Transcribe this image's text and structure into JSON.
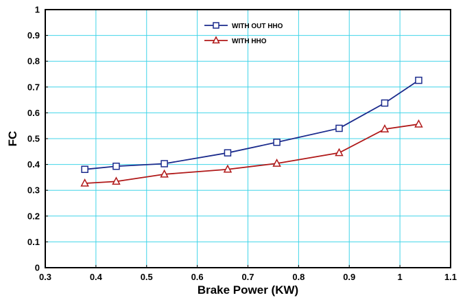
{
  "chart_data": {
    "type": "line",
    "title": "",
    "xlabel": "Brake Power (KW)",
    "ylabel": "FC",
    "xlim": [
      0.3,
      1.1
    ],
    "ylim": [
      0,
      1
    ],
    "xticks": [
      0.3,
      0.4,
      0.5,
      0.6,
      0.7,
      0.8,
      0.9,
      1,
      1.1
    ],
    "yticks": [
      0,
      0.1,
      0.2,
      0.3,
      0.4,
      0.5,
      0.6,
      0.7,
      0.8,
      0.9,
      1
    ],
    "xtick_labels": [
      "0.3",
      "0.4",
      "0.5",
      "0.6",
      "0.7",
      "0.8",
      "0.9",
      "1",
      "1.1"
    ],
    "ytick_labels": [
      "0",
      "0.1",
      "0.2",
      "0.3",
      "0.4",
      "0.5",
      "0.6",
      "0.7",
      "0.8",
      "0.9",
      "1"
    ],
    "grid": true,
    "grid_color": "#40d4e8",
    "legend_position": "top-center",
    "series": [
      {
        "name": "WITH OUT HHO",
        "color": "#1a2a8c",
        "marker": "square",
        "x": [
          0.378,
          0.44,
          0.535,
          0.66,
          0.757,
          0.88,
          0.97,
          1.037
        ],
        "y": [
          0.381,
          0.393,
          0.403,
          0.445,
          0.486,
          0.54,
          0.638,
          0.726
        ]
      },
      {
        "name": "WITH HHO",
        "color": "#b01818",
        "marker": "triangle",
        "x": [
          0.378,
          0.44,
          0.535,
          0.66,
          0.757,
          0.88,
          0.97,
          1.037
        ],
        "y": [
          0.327,
          0.334,
          0.362,
          0.381,
          0.404,
          0.445,
          0.537,
          0.556
        ]
      }
    ]
  }
}
